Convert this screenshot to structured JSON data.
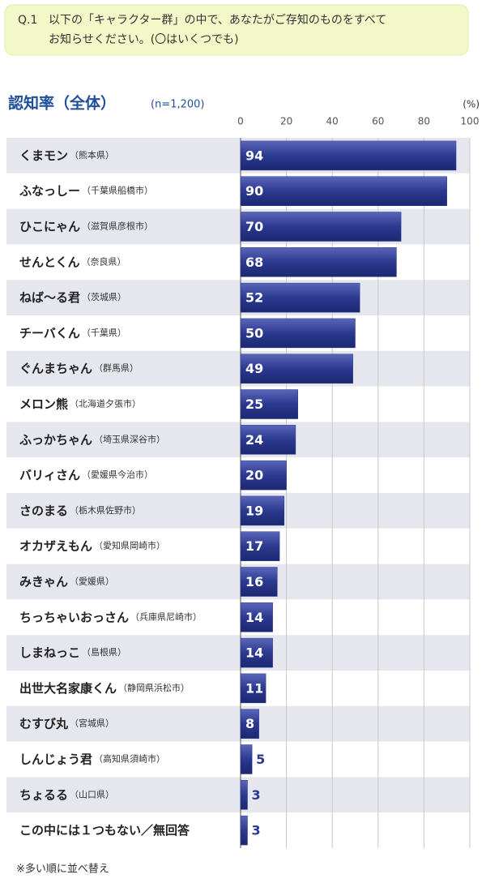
{
  "question": {
    "number": "Q.1",
    "lines": [
      "以下の「キャラクター群」の中で、あなたがご存知のものをすべて",
      "お知らせください。(〇はいくつでも)"
    ]
  },
  "chart_data": {
    "type": "bar",
    "orientation": "horizontal",
    "title": "認知率（全体）",
    "subtitle": "(n=1,200)",
    "unit_label": "(%)",
    "categories": [
      "くまモン",
      "ふなっしー",
      "ひこにゃん",
      "せんとくん",
      "ねば～る君",
      "チーバくん",
      "ぐんまちゃん",
      "メロン熊",
      "ふっかちゃん",
      "バリィさん",
      "さのまる",
      "オカザえもん",
      "みきゃん",
      "ちっちゃいおっさん",
      "しまねっこ",
      "出世大名家康くん",
      "むすび丸",
      "しんじょう君",
      "ちょるる",
      "この中には１つもない／無回答"
    ],
    "regions": [
      "（熊本県）",
      "（千葉県船橋市）",
      "（滋賀県彦根市）",
      "（奈良県）",
      "（茨城県）",
      "（千葉県）",
      "（群馬県）",
      "（北海道夕張市）",
      "（埼玉県深谷市）",
      "（愛媛県今治市）",
      "（栃木県佐野市）",
      "（愛知県岡崎市）",
      "（愛媛県）",
      "（兵庫県尼崎市）",
      "（島根県）",
      "（静岡県浜松市）",
      "（宮城県）",
      "（高知県須崎市）",
      "（山口県）",
      null
    ],
    "values": [
      94,
      90,
      70,
      68,
      52,
      50,
      49,
      25,
      24,
      20,
      19,
      17,
      16,
      14,
      14,
      11,
      8,
      5,
      3,
      3
    ],
    "color": "#2b3990",
    "xlim": [
      0,
      100
    ],
    "xticks": [
      0,
      20,
      40,
      60,
      80,
      100
    ],
    "grid": true
  },
  "footnote": "※多い順に並べ替え"
}
